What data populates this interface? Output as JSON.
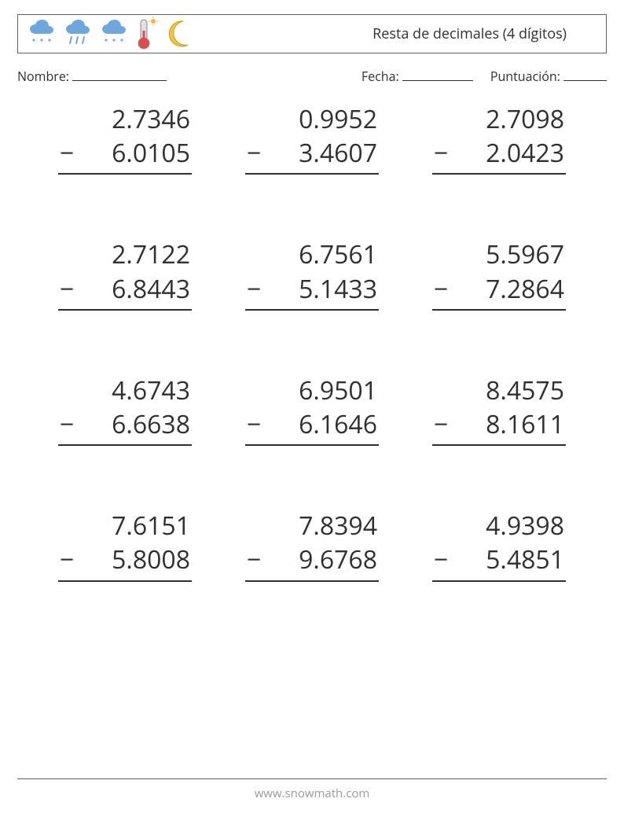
{
  "header": {
    "title": "Resta de decimales (4 dígitos)",
    "icons": [
      "cloud-snow",
      "cloud-rain",
      "cloud-snow",
      "thermometer-sun",
      "moon"
    ]
  },
  "meta": {
    "name_label": "Nombre:",
    "date_label": "Fecha:",
    "score_label": "Puntuación:",
    "name_line_width": 120,
    "date_line_width": 90,
    "score_line_width": 55
  },
  "style": {
    "text_color": "#303030",
    "border_color": "#606060",
    "footer_color": "#9a9a9a",
    "problem_fontsize": 32,
    "cloud_color": "#6fa7dd",
    "rain_color": "#6fa7dd",
    "therm_body": "#e0e0e0",
    "therm_bulb": "#e24b4b",
    "sun_color": "#f5b642",
    "moon_color": "#f5c542"
  },
  "problems": [
    {
      "a": "2.7346",
      "b": "6.0105"
    },
    {
      "a": "0.9952",
      "b": "3.4607"
    },
    {
      "a": "2.7098",
      "b": "2.0423"
    },
    {
      "a": "2.7122",
      "b": "6.8443"
    },
    {
      "a": "6.7561",
      "b": "5.1433"
    },
    {
      "a": "5.5967",
      "b": "7.2864"
    },
    {
      "a": "4.6743",
      "b": "6.6638"
    },
    {
      "a": "6.9501",
      "b": "6.1646"
    },
    {
      "a": "8.4575",
      "b": "8.1611"
    },
    {
      "a": "7.6151",
      "b": "5.8008"
    },
    {
      "a": "7.8394",
      "b": "9.6768"
    },
    {
      "a": "4.9398",
      "b": "5.4851"
    }
  ],
  "footer": {
    "url": "www.snowmath.com"
  }
}
